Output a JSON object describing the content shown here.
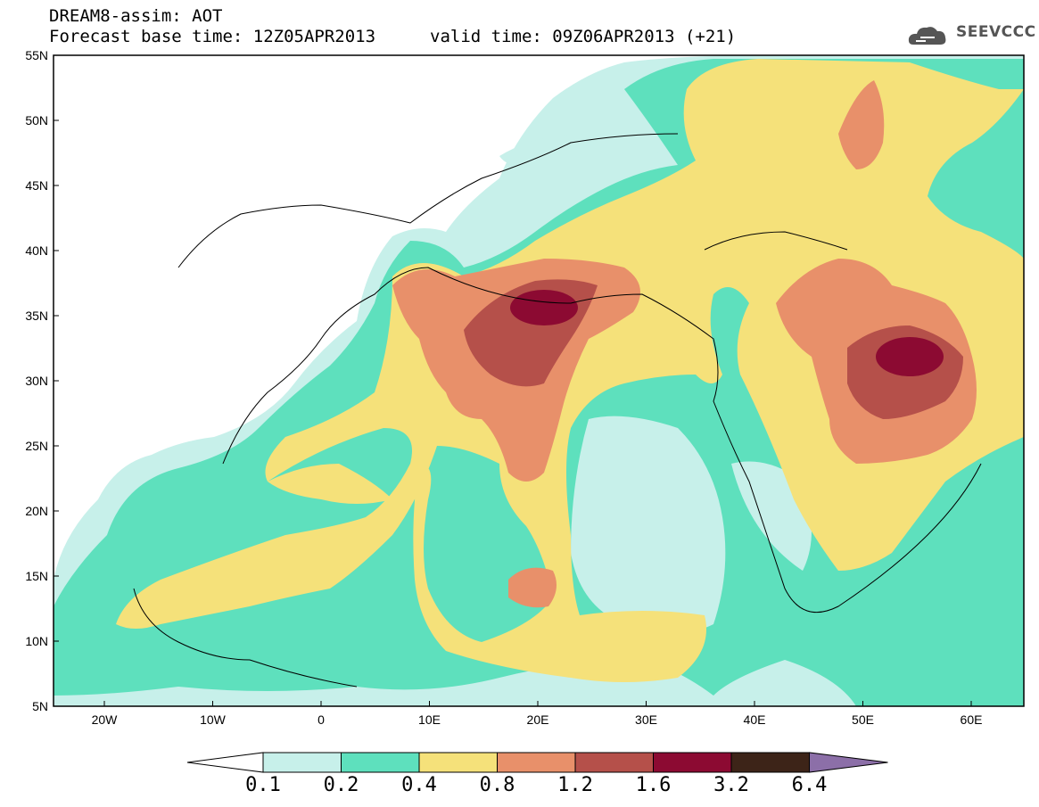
{
  "header": {
    "title": "DREAM8-assim: AOT",
    "forecast_base": "Forecast base time: 12Z05APR2013",
    "valid_time": "valid time: 09Z06APR2013 (+21)",
    "logo_text": "SEEVCCC"
  },
  "axes": {
    "lat_labels": [
      "55N",
      "50N",
      "45N",
      "40N",
      "35N",
      "30N",
      "25N",
      "20N",
      "15N",
      "10N",
      "5N"
    ],
    "lon_labels": [
      "20W",
      "10W",
      "0",
      "10E",
      "20E",
      "30E",
      "40E",
      "50E",
      "60E"
    ]
  },
  "colorbar": {
    "labels": [
      "0.1",
      "0.2",
      "0.4",
      "0.8",
      "1.2",
      "1.6",
      "3.2",
      "6.4"
    ],
    "colors": [
      "#ffffff",
      "#c7f0ea",
      "#5ee0bd",
      "#f5e17a",
      "#e8906a",
      "#b5504a",
      "#8c0a32",
      "#3d2418",
      "#8c6fa8"
    ]
  }
}
